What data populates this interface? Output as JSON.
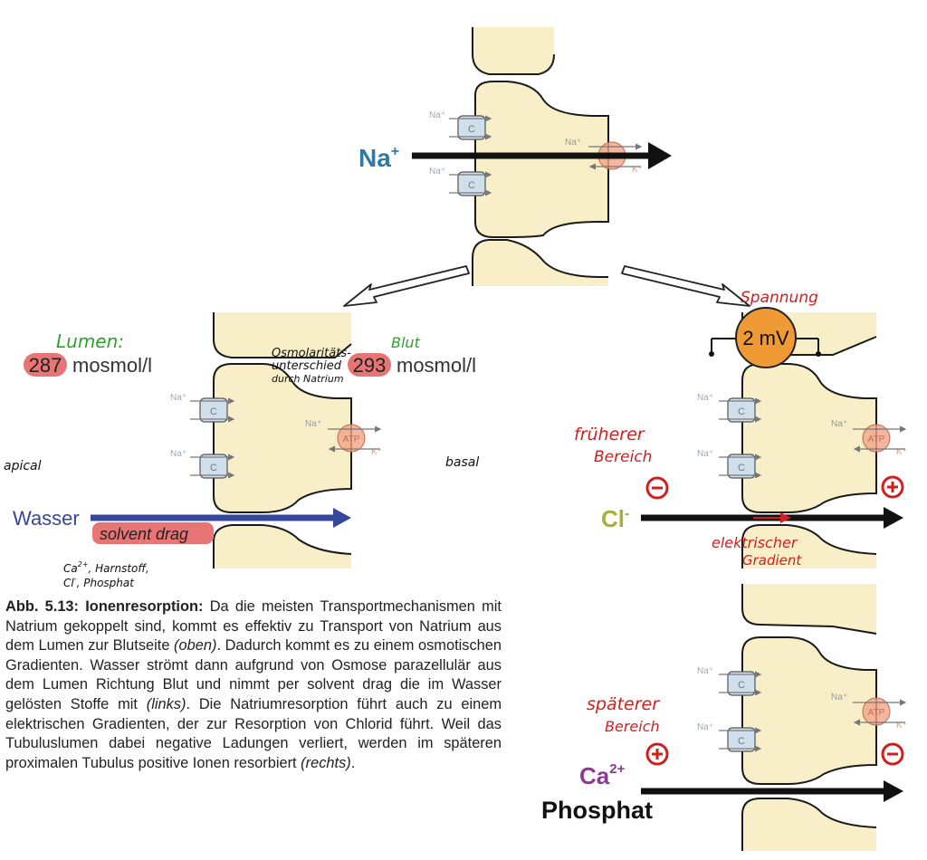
{
  "colors": {
    "cell": "#f8efc8",
    "cellStroke": "#1a1a1a",
    "sodium": "#2f7aa6",
    "badge": "#e87575",
    "water": "#35479a",
    "green": "#2aa52a",
    "red": "#d11f1f",
    "atp": "#f2a488",
    "transporter": "#cfe0ec",
    "purple": "#8b3b8f",
    "olive": "#a5b23a",
    "volt": "#ef9a35"
  },
  "top": {
    "ion": "Na",
    "ion_sup": "+",
    "ch_na1": "Na⁺",
    "ch_na2": "Na⁺",
    "pump_na": "Na⁺",
    "pump_k": "K⁺",
    "c1": "C",
    "c2": "C"
  },
  "left": {
    "lumen": "Lumen:",
    "lumen_value": "287",
    "unit1": "mosmol/l",
    "blood": "Blut",
    "blood_value": "293",
    "unit2": "mosmol/l",
    "note1": "Osmolaritäts-",
    "note2": "unterschied",
    "note3": "durch Natrium",
    "apical": "apical",
    "basal": "basal",
    "water": "Wasser",
    "drag": "solvent drag",
    "sub1": "Ca",
    "sub1_sup": "2+",
    "sub2": ", Harnstoff,",
    "sub3": "Cl",
    "sub3_sup": "-",
    "sub4": ", Phosphat",
    "ch_na1": "Na⁺",
    "ch_na2": "Na⁺",
    "pump_na": "Na⁺",
    "pump_k": "K⁺",
    "c1": "C",
    "c2": "C",
    "atp": "ATP"
  },
  "right": {
    "spannung": "Spannung",
    "volt": "2 mV",
    "early1": "früherer",
    "early2": "Bereich",
    "cl": "Cl",
    "cl_sup": "-",
    "grad1": "elektrischer",
    "grad2": "Gradient",
    "ch_na1": "Na⁺",
    "ch_na2": "Na⁺",
    "pump_na": "Na⁺",
    "pump_k": "K⁺",
    "c1": "C",
    "c2": "C",
    "atp": "ATP",
    "late1": "späterer",
    "late2": "Bereich",
    "ca": "Ca",
    "ca_sup": "2+",
    "phosphat": "Phosphat",
    "ch2_na1": "Na⁺",
    "ch2_na2": "Na⁺",
    "pump2_na": "Na⁺",
    "pump2_k": "K⁺",
    "c3": "C",
    "c4": "C",
    "atp2": "ATP"
  },
  "caption": {
    "label": "Abb. 5.13: Ionenresorption:",
    "t1": " Da die meisten Transport­mechanismen mit Natrium gekoppelt sind, kommt es effektiv zu Transport von Natrium aus dem Lumen zur Blutseite ",
    "i1": "(oben)",
    "t2": ". Dadurch kommt es zu einem osmotischen Gradienten. Wasser strömt dann aufgrund von Osmose parazellulär aus dem Lumen Richtung Blut und nimmt per solvent drag die im Wasser gelösten Stoffe mit ",
    "i2": "(links)",
    "t3": ". Die Natriumresorption führt auch zu einem elektrischen Gradienten, der zur Resorption von Chlorid führt. Weil das Tubuluslumen dabei negative Ladungen verliert, werden im späteren proximalen Tubulus positive Ionen resorbiert ",
    "i3": "(rechts)",
    "t4": "."
  }
}
